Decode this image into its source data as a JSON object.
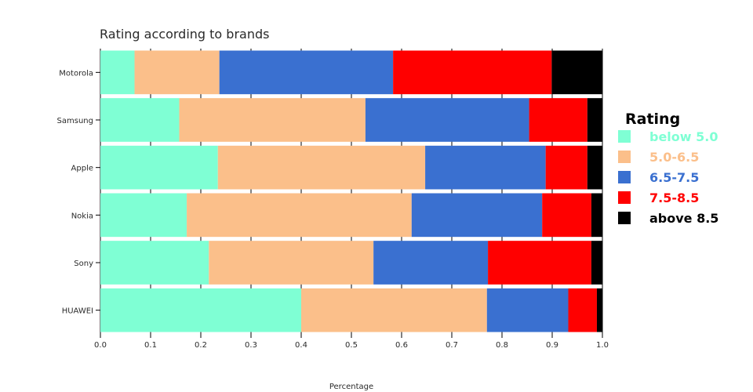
{
  "chart_data": {
    "type": "bar",
    "orientation": "horizontal",
    "stacked": true,
    "title": "Rating according to brands",
    "xlabel": "Percentage",
    "ylabel": "",
    "xlim": [
      0,
      1
    ],
    "x_ticks": [
      "0.0",
      "0.1",
      "0.2",
      "0.3",
      "0.4",
      "0.5",
      "0.6",
      "0.7",
      "0.8",
      "0.9",
      "1.0"
    ],
    "x_tick_values": [
      0,
      0.1,
      0.2,
      0.3,
      0.4,
      0.5,
      0.6,
      0.7,
      0.8,
      0.9,
      1.0
    ],
    "grid": true,
    "legend_title": "Rating",
    "legend_position": "right",
    "categories": [
      "Motorola",
      "Samsung",
      "Apple",
      "Nokia",
      "Sony",
      "HUAWEI"
    ],
    "series": [
      {
        "name": "below 5.0",
        "color": "#7fffd4",
        "values": [
          0.068,
          0.157,
          0.234,
          0.172,
          0.216,
          0.4
        ]
      },
      {
        "name": "5.0-6.5",
        "color": "#fbbf8a",
        "values": [
          0.169,
          0.371,
          0.413,
          0.448,
          0.328,
          0.37
        ]
      },
      {
        "name": "6.5-7.5",
        "color": "#3a70d0",
        "values": [
          0.346,
          0.326,
          0.24,
          0.26,
          0.228,
          0.162
        ]
      },
      {
        "name": "7.5-8.5",
        "color": "#ff0000",
        "values": [
          0.316,
          0.116,
          0.083,
          0.098,
          0.206,
          0.057
        ]
      },
      {
        "name": "above 8.5",
        "color": "#000000",
        "values": [
          0.101,
          0.03,
          0.03,
          0.022,
          0.022,
          0.011
        ]
      }
    ]
  }
}
